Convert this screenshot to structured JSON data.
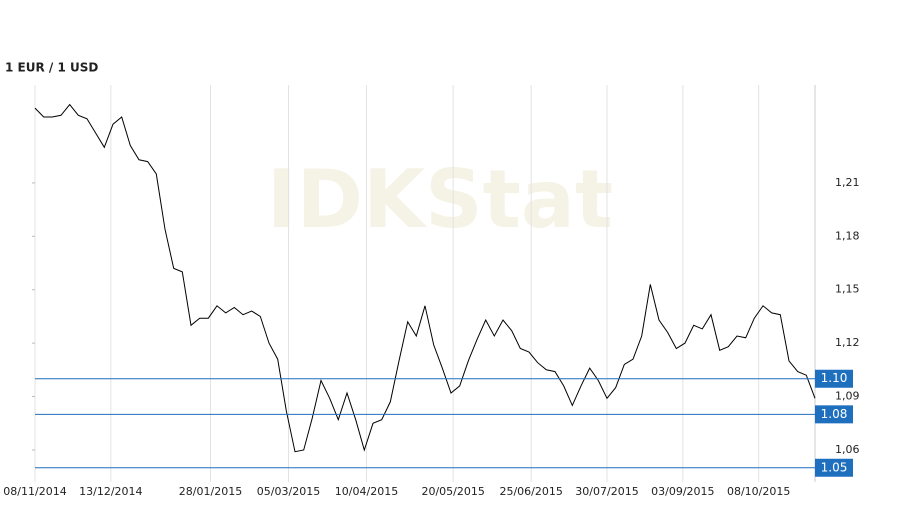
{
  "chart_data": {
    "type": "line",
    "title": "1 EUR / 1 USD",
    "watermark": "IDKStat",
    "color": "#000000",
    "x": [
      "2014-11-08",
      "2014-11-12",
      "2014-11-16",
      "2014-11-20",
      "2014-11-24",
      "2014-11-28",
      "2014-12-02",
      "2014-12-06",
      "2014-12-10",
      "2014-12-14",
      "2014-12-18",
      "2014-12-22",
      "2014-12-26",
      "2014-12-30",
      "2015-01-03",
      "2015-01-07",
      "2015-01-11",
      "2015-01-15",
      "2015-01-19",
      "2015-01-23",
      "2015-01-27",
      "2015-01-31",
      "2015-02-04",
      "2015-02-08",
      "2015-02-12",
      "2015-02-16",
      "2015-02-20",
      "2015-02-24",
      "2015-02-28",
      "2015-03-04",
      "2015-03-08",
      "2015-03-12",
      "2015-03-16",
      "2015-03-20",
      "2015-03-24",
      "2015-03-28",
      "2015-04-01",
      "2015-04-05",
      "2015-04-09",
      "2015-04-13",
      "2015-04-17",
      "2015-04-21",
      "2015-04-25",
      "2015-04-29",
      "2015-05-03",
      "2015-05-07",
      "2015-05-11",
      "2015-05-15",
      "2015-05-19",
      "2015-05-23",
      "2015-05-27",
      "2015-05-31",
      "2015-06-04",
      "2015-06-08",
      "2015-06-12",
      "2015-06-16",
      "2015-06-20",
      "2015-06-24",
      "2015-06-28",
      "2015-07-02",
      "2015-07-06",
      "2015-07-10",
      "2015-07-14",
      "2015-07-18",
      "2015-07-22",
      "2015-07-26",
      "2015-07-30",
      "2015-08-03",
      "2015-08-07",
      "2015-08-11",
      "2015-08-15",
      "2015-08-19",
      "2015-08-23",
      "2015-08-27",
      "2015-08-31",
      "2015-09-04",
      "2015-09-08",
      "2015-09-12",
      "2015-09-16",
      "2015-09-20",
      "2015-09-24",
      "2015-09-28",
      "2015-10-02",
      "2015-10-06",
      "2015-10-10",
      "2015-10-14",
      "2015-10-18",
      "2015-10-22",
      "2015-10-26",
      "2015-10-30",
      "2015-11-03"
    ],
    "values": [
      1.252,
      1.247,
      1.247,
      1.248,
      1.254,
      1.248,
      1.246,
      1.238,
      1.23,
      1.243,
      1.247,
      1.231,
      1.223,
      1.222,
      1.215,
      1.184,
      1.162,
      1.16,
      1.13,
      1.134,
      1.134,
      1.141,
      1.137,
      1.14,
      1.136,
      1.138,
      1.135,
      1.12,
      1.111,
      1.082,
      1.059,
      1.06,
      1.078,
      1.099,
      1.089,
      1.077,
      1.092,
      1.077,
      1.06,
      1.075,
      1.077,
      1.087,
      1.11,
      1.132,
      1.124,
      1.141,
      1.119,
      1.106,
      1.092,
      1.096,
      1.11,
      1.122,
      1.133,
      1.124,
      1.133,
      1.127,
      1.117,
      1.115,
      1.109,
      1.105,
      1.104,
      1.096,
      1.085,
      1.096,
      1.106,
      1.099,
      1.089,
      1.095,
      1.108,
      1.111,
      1.124,
      1.153,
      1.133,
      1.126,
      1.117,
      1.12,
      1.13,
      1.128,
      1.136,
      1.116,
      1.118,
      1.124,
      1.123,
      1.134,
      1.141,
      1.137,
      1.136,
      1.11,
      1.104,
      1.102,
      1.089
    ],
    "xlim": [
      "2014-11-08",
      "2015-11-03"
    ],
    "xticks": [
      {
        "value": "2014-11-08",
        "label": "08/11/2014"
      },
      {
        "value": "2014-12-13",
        "label": "13/12/2014"
      },
      {
        "value": "2015-01-28",
        "label": "28/01/2015"
      },
      {
        "value": "2015-03-05",
        "label": "05/03/2015"
      },
      {
        "value": "2015-04-10",
        "label": "10/04/2015"
      },
      {
        "value": "2015-05-20",
        "label": "20/05/2015"
      },
      {
        "value": "2015-06-25",
        "label": "25/06/2015"
      },
      {
        "value": "2015-07-30",
        "label": "30/07/2015"
      },
      {
        "value": "2015-09-03",
        "label": "03/09/2015"
      },
      {
        "value": "2015-10-08",
        "label": "08/10/2015"
      }
    ],
    "ylim": [
      1.042,
      1.265
    ],
    "yticks": [
      {
        "value": 1.06,
        "label": "1,06"
      },
      {
        "value": 1.09,
        "label": "1,09"
      },
      {
        "value": 1.12,
        "label": "1,12"
      },
      {
        "value": 1.15,
        "label": "1,15"
      },
      {
        "value": 1.18,
        "label": "1,18"
      },
      {
        "value": 1.21,
        "label": "1,21"
      }
    ],
    "reference_lines": [
      {
        "value": 1.1,
        "label": "1.10"
      },
      {
        "value": 1.08,
        "label": "1.08"
      },
      {
        "value": 1.05,
        "label": "1.05"
      }
    ],
    "reference_color": "#1f6fbf",
    "grid": true
  }
}
